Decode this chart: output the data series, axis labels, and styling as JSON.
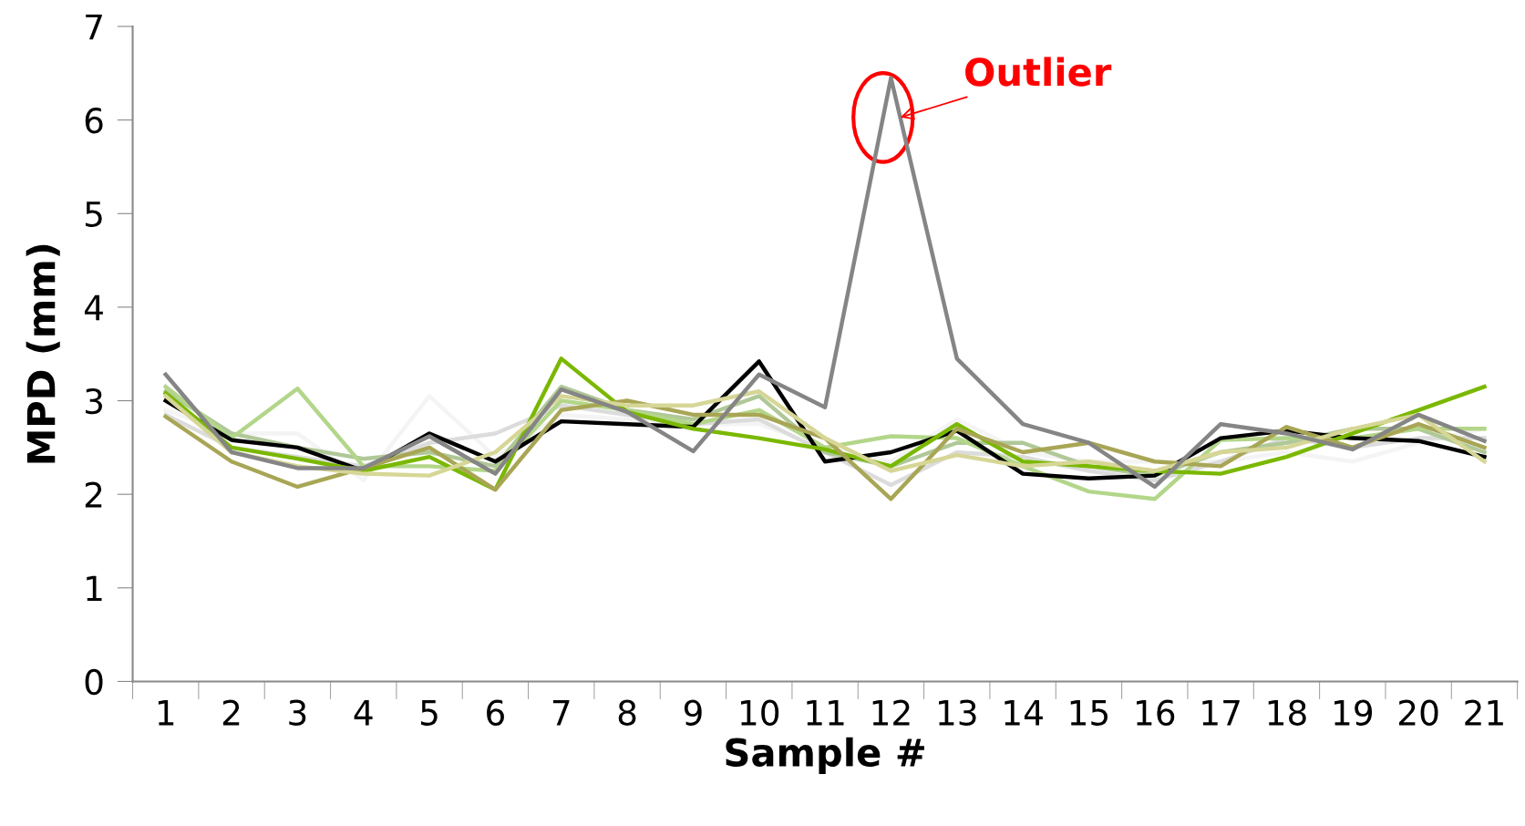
{
  "chart_data": {
    "type": "line",
    "xlabel": "Sample #",
    "ylabel": "MPD (mm)",
    "categories": [
      "1",
      "2",
      "3",
      "4",
      "5",
      "6",
      "7",
      "8",
      "9",
      "10",
      "11",
      "12",
      "13",
      "14",
      "15",
      "16",
      "17",
      "18",
      "19",
      "20",
      "21"
    ],
    "ylim": [
      0,
      7
    ],
    "yticks": [
      0,
      1,
      2,
      3,
      4,
      5,
      6,
      7
    ],
    "grid": false,
    "marker": "none",
    "line_style": "solid",
    "series": [
      {
        "color": "#f4f4f4",
        "values": [
          2.9,
          2.65,
          2.65,
          2.15,
          3.05,
          2.4,
          2.85,
          2.8,
          2.75,
          2.75,
          2.5,
          2.35,
          2.8,
          2.45,
          2.35,
          2.35,
          2.35,
          2.45,
          2.35,
          2.55,
          2.7
        ]
      },
      {
        "color": "#dcdcdc",
        "values": [
          2.85,
          2.5,
          2.4,
          2.3,
          2.55,
          2.65,
          2.95,
          2.85,
          2.75,
          2.8,
          2.45,
          2.1,
          2.45,
          2.4,
          2.25,
          2.15,
          2.35,
          2.6,
          2.5,
          2.6,
          2.6
        ]
      },
      {
        "color": "#b0c898",
        "values": [
          3.1,
          2.65,
          2.5,
          2.38,
          2.45,
          2.3,
          3.15,
          2.9,
          2.8,
          3.05,
          2.45,
          2.3,
          2.55,
          2.55,
          2.3,
          2.2,
          2.45,
          2.55,
          2.7,
          2.7,
          2.45
        ]
      },
      {
        "color": "#b3d68a",
        "values": [
          3.15,
          2.6,
          3.13,
          2.3,
          2.3,
          2.25,
          3.0,
          2.9,
          2.75,
          2.9,
          2.5,
          2.62,
          2.6,
          2.3,
          2.03,
          1.95,
          2.58,
          2.6,
          2.6,
          2.7,
          2.7
        ]
      },
      {
        "color": "#000000",
        "values": [
          3.0,
          2.58,
          2.5,
          2.25,
          2.65,
          2.35,
          2.78,
          2.75,
          2.72,
          3.42,
          2.35,
          2.45,
          2.68,
          2.22,
          2.17,
          2.2,
          2.6,
          2.68,
          2.6,
          2.57,
          2.4
        ]
      },
      {
        "color": "#7ab800",
        "values": [
          3.08,
          2.5,
          2.38,
          2.25,
          2.4,
          2.05,
          3.45,
          2.88,
          2.7,
          2.6,
          2.48,
          2.3,
          2.75,
          2.35,
          2.3,
          2.25,
          2.22,
          2.4,
          2.65,
          2.9,
          3.15
        ]
      },
      {
        "color": "#a8a655",
        "values": [
          2.83,
          2.35,
          2.08,
          2.28,
          2.5,
          2.05,
          2.9,
          3.0,
          2.85,
          2.85,
          2.6,
          1.95,
          2.7,
          2.45,
          2.55,
          2.35,
          2.3,
          2.72,
          2.5,
          2.75,
          2.5
        ]
      },
      {
        "color": "#d6d696",
        "values": [
          3.05,
          2.45,
          2.3,
          2.22,
          2.2,
          2.45,
          3.05,
          2.95,
          2.95,
          3.1,
          2.6,
          2.25,
          2.42,
          2.3,
          2.35,
          2.25,
          2.45,
          2.5,
          2.7,
          2.85,
          2.35
        ]
      },
      {
        "color": "#858585",
        "values": [
          3.28,
          2.45,
          2.28,
          2.28,
          2.62,
          2.22,
          3.12,
          2.88,
          2.46,
          3.28,
          2.93,
          6.45,
          3.45,
          2.75,
          2.55,
          2.08,
          2.75,
          2.65,
          2.48,
          2.85,
          2.57
        ]
      }
    ],
    "annotations": [
      {
        "text": "Outlier",
        "x": "12",
        "y": 6.45
      }
    ]
  }
}
